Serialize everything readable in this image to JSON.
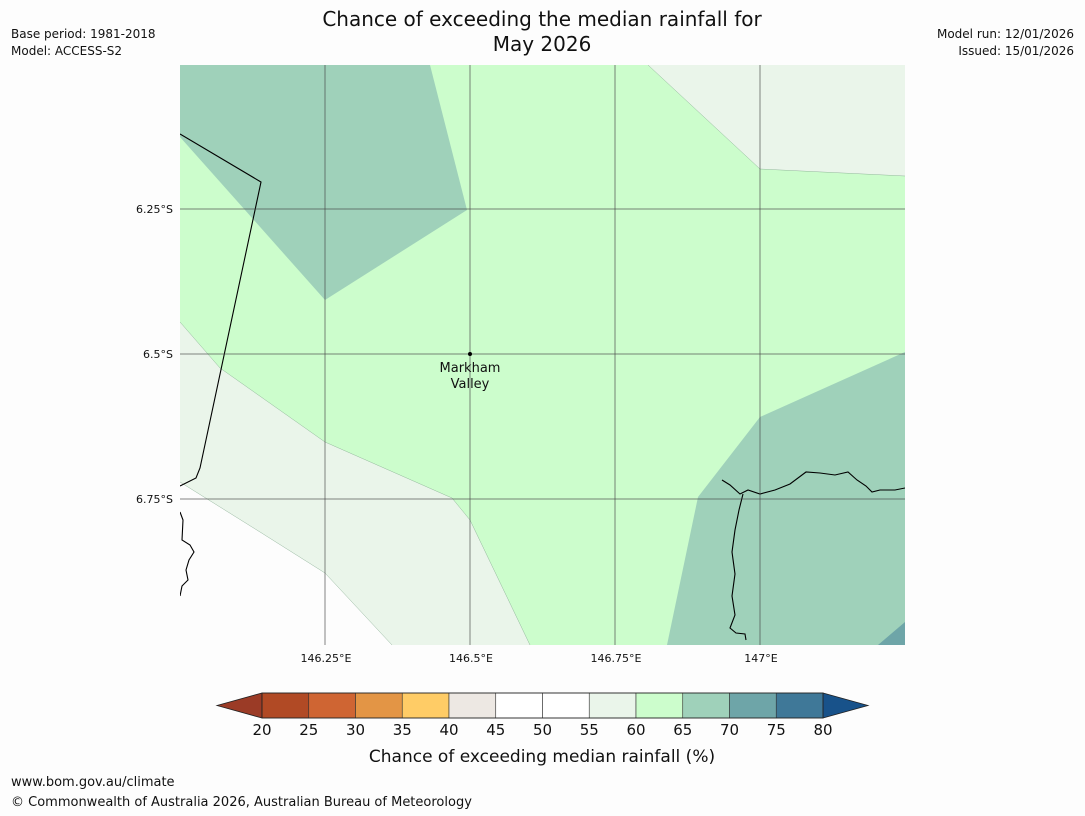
{
  "header": {
    "title_line1": "Chance of exceeding the median rainfall for",
    "title_line2": "May 2026",
    "base_period": "Base period: 1981-2018",
    "model": "Model: ACCESS-S2",
    "model_run": "Model run: 12/01/2026",
    "issued": "Issued: 15/01/2026"
  },
  "map": {
    "lat_labels": [
      "6.25°S",
      "6.5°S",
      "6.75°S"
    ],
    "lon_labels": [
      "146.25°E",
      "146.5°E",
      "146.75°E",
      "147°E"
    ],
    "place": {
      "name_line1": "Markham",
      "name_line2": "Valley"
    },
    "region_colors": {
      "c55_60": "#eaf5ea",
      "c60_65": "#ccfdcc",
      "c65_70": "#9fd1ba",
      "c70_75": "#6ea5a8"
    }
  },
  "colorbar": {
    "title": "Chance of exceeding median rainfall (%)",
    "ticks": [
      "20",
      "25",
      "30",
      "35",
      "40",
      "45",
      "50",
      "55",
      "60",
      "65",
      "70",
      "75",
      "80"
    ],
    "under_color": "#9b3b26",
    "over_color": "#18528a",
    "colors": [
      "#b14a25",
      "#cf6533",
      "#e39545",
      "#ffcc66",
      "#ede8e3",
      "#ffffff",
      "#ffffff",
      "#eaf5ea",
      "#ccfdcc",
      "#9fd1ba",
      "#6ea5a8",
      "#3f7898"
    ]
  },
  "footer": {
    "url": "www.bom.gov.au/climate",
    "copyright": "© Commonwealth of Australia 2026, Australian Bureau of Meteorology"
  }
}
